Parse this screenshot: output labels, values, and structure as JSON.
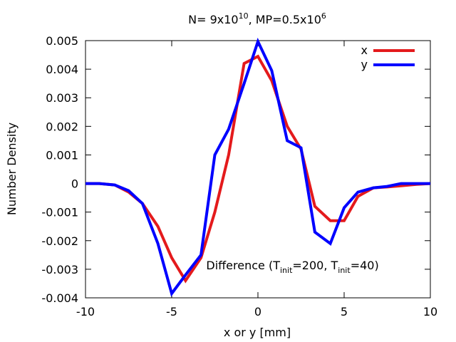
{
  "chart_data": {
    "type": "line",
    "title": {
      "prefix": "N= 9x10",
      "n_exponent": "10",
      "middle": ", MP=0.5x10",
      "mp_exponent": "6"
    },
    "xlabel": "x or y [mm]",
    "ylabel": "Number Density",
    "xlim": [
      -10,
      10
    ],
    "ylim": [
      -0.004,
      0.005
    ],
    "xticks": [
      -10,
      -5,
      0,
      5,
      10
    ],
    "xtick_labels": [
      "-10",
      "-5",
      "0",
      "5",
      "10"
    ],
    "yticks": [
      -0.004,
      -0.003,
      -0.002,
      -0.001,
      0,
      0.001,
      0.002,
      0.003,
      0.004,
      0.005
    ],
    "ytick_labels": [
      "-0.004",
      "-0.003",
      "-0.002",
      "-0.001",
      "0",
      "0.001",
      "0.002",
      "0.003",
      "0.004",
      "0.005"
    ],
    "grid": false,
    "legend_position": "top-right",
    "series": [
      {
        "name": "x",
        "color": "#e41a1c",
        "x": [
          -10,
          -9.2,
          -8.3,
          -7.5,
          -6.7,
          -5.8,
          -5.0,
          -4.2,
          -3.3,
          -2.5,
          -1.7,
          -0.8,
          0,
          0.8,
          1.7,
          2.5,
          3.3,
          4.2,
          5.0,
          5.8,
          6.7,
          7.5,
          8.3,
          9.2,
          10
        ],
        "values": [
          0,
          0,
          -5e-05,
          -0.0003,
          -0.0007,
          -0.0015,
          -0.0026,
          -0.0034,
          -0.0026,
          -0.001,
          0.001,
          0.0042,
          0.00445,
          0.0036,
          0.002,
          0.0012,
          -0.0008,
          -0.0013,
          -0.0013,
          -0.00045,
          -0.00015,
          -0.00012,
          -8e-05,
          -3e-05,
          0
        ]
      },
      {
        "name": "y",
        "color": "#0000ff",
        "x": [
          -10,
          -9.2,
          -8.3,
          -7.5,
          -6.7,
          -5.8,
          -5.0,
          -4.2,
          -3.3,
          -2.5,
          -1.7,
          -0.8,
          0,
          0.8,
          1.7,
          2.5,
          3.3,
          4.2,
          5.0,
          5.8,
          6.7,
          7.5,
          8.3,
          9.2,
          10
        ],
        "values": [
          0,
          0,
          -5e-05,
          -0.00025,
          -0.0007,
          -0.0021,
          -0.00385,
          -0.0032,
          -0.0025,
          0.001,
          0.0019,
          0.0035,
          0.00497,
          0.00395,
          0.0015,
          0.00125,
          -0.0017,
          -0.0021,
          -0.00085,
          -0.0003,
          -0.00015,
          -0.0001,
          0,
          0,
          0
        ]
      }
    ],
    "annotation": {
      "prefix": "Difference (T",
      "sub1": "init",
      "mid": "=200,  T",
      "sub2": "init",
      "suffix": "=40)",
      "anchor_x": -3.0,
      "anchor_y": -0.003
    }
  }
}
